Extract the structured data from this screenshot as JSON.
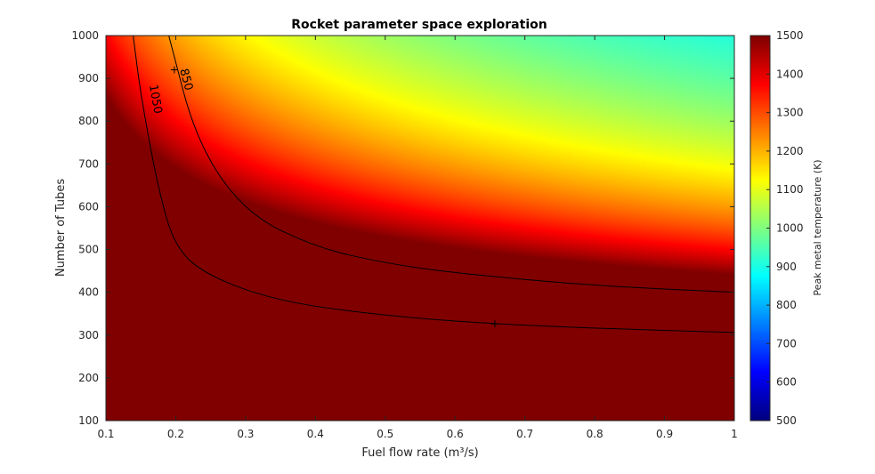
{
  "chart_data": {
    "type": "heatmap",
    "title": "Rocket parameter space exploration",
    "xlabel": "Fuel flow rate (m³/s)",
    "ylabel": "Number of Tubes",
    "xlim": [
      0.1,
      1
    ],
    "ylim": [
      100,
      1000
    ],
    "x_ticks": [
      "0.1",
      "0.2",
      "0.3",
      "0.4",
      "0.5",
      "0.6",
      "0.7",
      "0.8",
      "0.9",
      "1"
    ],
    "y_ticks": [
      "100",
      "200",
      "300",
      "400",
      "500",
      "600",
      "700",
      "800",
      "900",
      "1000"
    ],
    "colorbar": {
      "label": "Peak metal temperature  (K)",
      "range": [
        500,
        1500
      ],
      "ticks": [
        "500",
        "600",
        "700",
        "800",
        "900",
        "1000",
        "1100",
        "1200",
        "1300",
        "1400",
        "1500"
      ],
      "colormap": "jet"
    },
    "contours": [
      {
        "label": "1050",
        "level": 1050,
        "points": [
          [
            0.139,
            1000
          ],
          [
            0.15,
            860
          ],
          [
            0.175,
            640
          ],
          [
            0.2,
            500
          ],
          [
            0.25,
            435
          ],
          [
            0.35,
            378
          ],
          [
            0.5,
            345
          ],
          [
            0.657,
            326
          ],
          [
            0.8,
            316
          ],
          [
            1.0,
            306
          ]
        ]
      },
      {
        "label": "850",
        "level": 850,
        "points": [
          [
            0.19,
            1000
          ],
          [
            0.23,
            750
          ],
          [
            0.3,
            585
          ],
          [
            0.4,
            505
          ],
          [
            0.5,
            468
          ],
          [
            0.6,
            445
          ],
          [
            0.8,
            415
          ],
          [
            1.0,
            400
          ]
        ]
      }
    ],
    "markers": [
      {
        "x": 0.198,
        "y": 920
      },
      {
        "x": 0.657,
        "y": 326
      }
    ],
    "model_note_hidden": false
  }
}
